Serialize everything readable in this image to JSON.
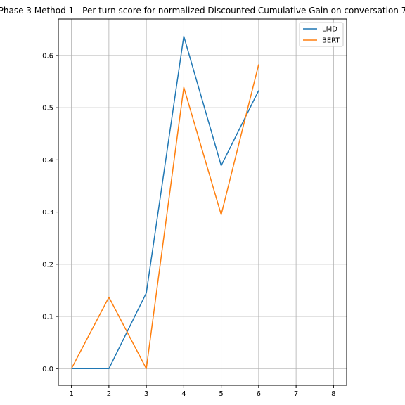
{
  "chart_data": {
    "type": "line",
    "title": "Phase 3 Method 1 - Per turn score for normalized Discounted Cumulative Gain on conversation 7",
    "xlabel": "",
    "ylabel": "",
    "x_ticks": [
      "1",
      "2",
      "3",
      "4",
      "5",
      "6",
      "7",
      "8"
    ],
    "y_ticks": [
      "0.0",
      "0.1",
      "0.2",
      "0.3",
      "0.4",
      "0.5",
      "0.6"
    ],
    "xlim": [
      0.65,
      8.35
    ],
    "ylim": [
      -0.032,
      0.67
    ],
    "grid": true,
    "legend_position": "upper right",
    "series": [
      {
        "name": "LMD",
        "color": "#1f77b4",
        "x": [
          1,
          2,
          3,
          4,
          5,
          6
        ],
        "y": [
          0.0,
          0.0,
          0.145,
          0.637,
          0.389,
          0.533
        ]
      },
      {
        "name": "BERT",
        "color": "#ff7f0e",
        "x": [
          1,
          2,
          3,
          4,
          5,
          6
        ],
        "y": [
          0.0,
          0.137,
          0.0,
          0.539,
          0.295,
          0.583
        ]
      }
    ]
  }
}
